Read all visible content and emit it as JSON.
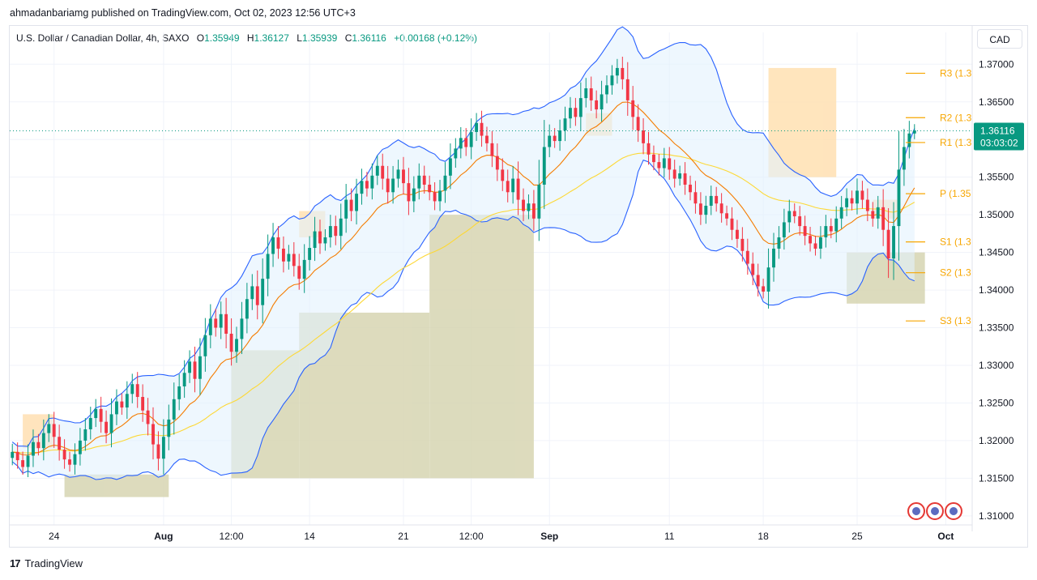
{
  "header": {
    "published_by": "ahmadanbariamg published on TradingView.com, Oct 02, 2023 12:56 UTC+3"
  },
  "legend": {
    "symbol": "U.S. Dollar / Canadian Dollar, 4h, SAXO",
    "open_label": "O",
    "open": "1.35949",
    "high_label": "H",
    "high": "1.36127",
    "low_label": "L",
    "low": "1.35939",
    "close_label": "C",
    "close": "1.36116",
    "change": "+0.00168 (+0.12%)"
  },
  "currency_button": "CAD",
  "footer": {
    "logo": "17",
    "brand": "TradingView"
  },
  "colors": {
    "up": "#089981",
    "down": "#f23645",
    "bollinger": "#2962ff",
    "bollinger_fill": "#e3f2fd",
    "ema_orange": "#f57c00",
    "sma_yellow": "#fdd835",
    "pivot": "#f7a600",
    "supply_zone": "#ffe0b2",
    "demand_zone": "#d7d5b2"
  },
  "chart_data": {
    "type": "candlestick",
    "title": "U.S. Dollar / Canadian Dollar, 4h, SAXO",
    "y_axis": {
      "range": [
        1.3088,
        1.371
      ],
      "ticks": [
        "1.37000",
        "1.36500",
        "1.36000",
        "1.35500",
        "1.35000",
        "1.34500",
        "1.34000",
        "1.33500",
        "1.33000",
        "1.32500",
        "1.32000",
        "1.31500",
        "1.31000"
      ]
    },
    "x_axis": {
      "ticks": [
        {
          "label": "24",
          "bar": 8
        },
        {
          "label": "Aug",
          "bar": 29
        },
        {
          "label": "12:00",
          "bar": 42
        },
        {
          "label": "14",
          "bar": 57
        },
        {
          "label": "21",
          "bar": 75
        },
        {
          "label": "12:00",
          "bar": 88
        },
        {
          "label": "Sep",
          "bar": 103
        },
        {
          "label": "11",
          "bar": 126
        },
        {
          "label": "18",
          "bar": 144
        },
        {
          "label": "25",
          "bar": 162
        },
        {
          "label": "Oct",
          "bar": 179
        }
      ]
    },
    "last_price": {
      "value": 1.36116,
      "label": "1.36116",
      "countdown": "03:03:02"
    },
    "pivots": [
      {
        "name": "R3 (1.3",
        "value": 1.3688
      },
      {
        "name": "R2 (1.3",
        "value": 1.3629
      },
      {
        "name": "R1 (1.3",
        "value": 1.3596
      },
      {
        "name": "P (1.35",
        "value": 1.3528
      },
      {
        "name": "S1 (1.3",
        "value": 1.3464
      },
      {
        "name": "S2 (1.3",
        "value": 1.3423
      },
      {
        "name": "S3 (1.3",
        "value": 1.3359
      }
    ],
    "close_series": [
      1.3185,
      1.3174,
      1.3165,
      1.318,
      1.3198,
      1.319,
      1.321,
      1.3222,
      1.3205,
      1.3188,
      1.3175,
      1.3168,
      1.3182,
      1.32,
      1.3215,
      1.323,
      1.3242,
      1.3225,
      1.321,
      1.3235,
      1.3252,
      1.3244,
      1.3262,
      1.3275,
      1.3258,
      1.324,
      1.3222,
      1.3195,
      1.3176,
      1.3205,
      1.3228,
      1.3255,
      1.3272,
      1.329,
      1.3305,
      1.3282,
      1.3312,
      1.334,
      1.3362,
      1.335,
      1.3368,
      1.3342,
      1.3318,
      1.3335,
      1.3362,
      1.3388,
      1.3405,
      1.338,
      1.3415,
      1.3448,
      1.347,
      1.3455,
      1.3438,
      1.3448,
      1.3432,
      1.3415,
      1.344,
      1.3456,
      1.3478,
      1.3462,
      1.347,
      1.3485,
      1.3472,
      1.3495,
      1.352,
      1.3505,
      1.3528,
      1.3545,
      1.3535,
      1.3552,
      1.3565,
      1.3548,
      1.353,
      1.3548,
      1.356,
      1.3542,
      1.3518,
      1.3535,
      1.3552,
      1.354,
      1.353,
      1.3518,
      1.3532,
      1.3552,
      1.3575,
      1.3588,
      1.3602,
      1.359,
      1.361,
      1.3622,
      1.3605,
      1.3595,
      1.3578,
      1.356,
      1.3545,
      1.353,
      1.3548,
      1.352,
      1.3505,
      1.3515,
      1.3495,
      1.354,
      1.359,
      1.3605,
      1.3598,
      1.3612,
      1.3628,
      1.3642,
      1.363,
      1.3655,
      1.3668,
      1.3652,
      1.364,
      1.366,
      1.3672,
      1.3685,
      1.3695,
      1.368,
      1.3652,
      1.363,
      1.3612,
      1.3595,
      1.358,
      1.357,
      1.3562,
      1.3575,
      1.356,
      1.3548,
      1.3555,
      1.354,
      1.353,
      1.3515,
      1.35,
      1.3512,
      1.3525,
      1.3515,
      1.3502,
      1.3495,
      1.348,
      1.3468,
      1.3452,
      1.3435,
      1.342,
      1.3405,
      1.3398,
      1.343,
      1.3455,
      1.347,
      1.349,
      1.3505,
      1.3498,
      1.3485,
      1.3472,
      1.3462,
      1.3455,
      1.347,
      1.3485,
      1.3478,
      1.3495,
      1.351,
      1.3522,
      1.3515,
      1.3532,
      1.352,
      1.3505,
      1.3495,
      1.351,
      1.348,
      1.3442,
      1.3485,
      1.356,
      1.359,
      1.3608,
      1.3612
    ]
  }
}
